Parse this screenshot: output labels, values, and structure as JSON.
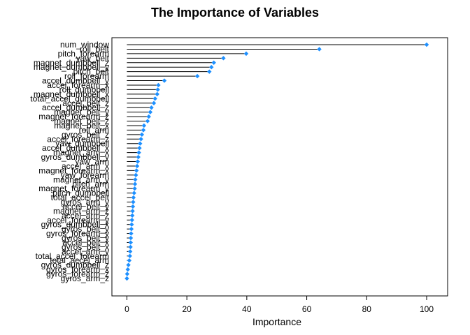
{
  "chart_data": {
    "type": "lollipop",
    "title": "The Importance of Variables",
    "xlabel": "Importance",
    "ylabel": "",
    "xlim": [
      -5,
      107
    ],
    "xticks": [
      0,
      20,
      40,
      60,
      80,
      100
    ],
    "xtick_labels": [
      "0",
      "20",
      "40",
      "60",
      "80",
      "100"
    ],
    "grid": false,
    "legend": "none",
    "point_color": "#1E90FF",
    "stem_color": "#000000",
    "categories": [
      "num_window",
      "roll_belt",
      "pitch_forearm",
      "yaw_belt",
      "magnet_dumbbell_z",
      "magnet_dumbbell_y",
      "pitch_belt",
      "roll_forearm",
      "accel_dumbbell_y",
      "accel_forearm_x",
      "roll_dumbbell",
      "magnet_dumbbell_x",
      "total_accel_dumbbell",
      "accel_belt_z",
      "accel_dumbbell_z",
      "magnet_belt_y",
      "magnet_forearm_z",
      "magnet_belt_z",
      "magnet_belt_x",
      "roll_arm",
      "gyros_belt_z",
      "accel_forearm_z",
      "yaw_dumbbell",
      "accel_dumbbell_x",
      "magnet_arm_x",
      "gyros_dumbbell_y",
      "yaw_arm",
      "accel_arm_x",
      "magnet_forearm_x",
      "yaw_forearm",
      "magnet_arm_y",
      "pitch_arm",
      "magnet_forearm_y",
      "pitch_dumbbell",
      "total_accel_belt",
      "gyros_arm_y",
      "accel_belt_y",
      "magnet_arm_z",
      "accel_arm_z",
      "accel_forearm_y",
      "gyros_dumbbell_x",
      "gyros_belt_y",
      "gyros_forearm_y",
      "gyros_belt_y",
      "accel_belt_x",
      "gyros_belt_x",
      "accel_arm_y",
      "total_accel_forearm",
      "total_accel_arm",
      "gyros_dumbbell_z",
      "gyros_forearm_x",
      "gyros_forearm_z",
      "gyros_arm_z"
    ],
    "values": [
      100,
      64.2,
      39.8,
      32.2,
      29.0,
      28.2,
      27.5,
      23.5,
      12.5,
      10.5,
      10.3,
      10.1,
      9.4,
      9.0,
      8.2,
      7.8,
      7.3,
      6.9,
      5.7,
      5.5,
      5.0,
      4.7,
      4.4,
      4.2,
      4.0,
      3.8,
      3.6,
      3.4,
      3.2,
      3.0,
      2.8,
      2.7,
      2.6,
      2.4,
      2.2,
      2.1,
      2.0,
      1.9,
      1.8,
      1.7,
      1.6,
      1.5,
      1.4,
      1.3,
      1.25,
      1.2,
      1.1,
      1.0,
      0.8,
      0.5,
      0.3,
      0.1,
      0.0
    ]
  }
}
